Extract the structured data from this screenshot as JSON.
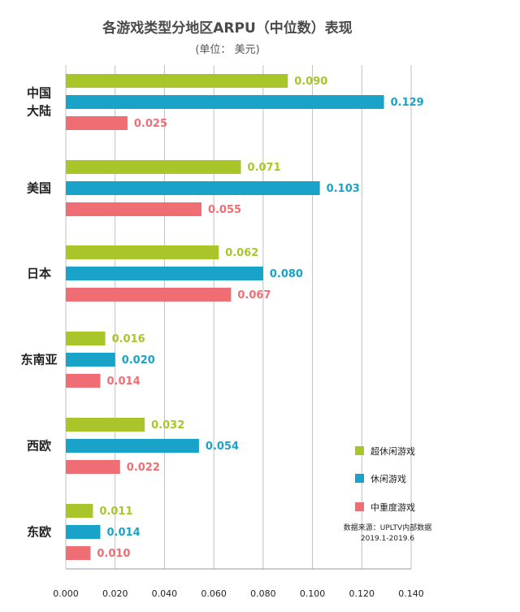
{
  "title": "各游戏类型分地区ARPU（中位数）表现",
  "subtitle": "(单位：  美元)",
  "source_line1": "数据来源：UPLTV内部数据",
  "source_line2": "2019.1-2019.6",
  "chart_data": {
    "type": "bar",
    "orientation": "horizontal",
    "categories": [
      [
        "中国",
        "大陆"
      ],
      [
        "美国"
      ],
      [
        "日本"
      ],
      [
        "东南亚"
      ],
      [
        "西欧"
      ],
      [
        "东欧"
      ]
    ],
    "series": [
      {
        "name": "超休闲游戏",
        "color": "#a8c62a",
        "values": [
          0.09,
          0.071,
          0.062,
          0.016,
          0.032,
          0.011
        ]
      },
      {
        "name": "休闲游戏",
        "color": "#1aa3c9",
        "values": [
          0.129,
          0.103,
          0.08,
          0.02,
          0.054,
          0.014
        ]
      },
      {
        "name": "中重度游戏",
        "color": "#ee6e73",
        "values": [
          0.025,
          0.055,
          0.067,
          0.014,
          0.022,
          0.01
        ]
      }
    ],
    "value_labels": [
      [
        "0.090",
        "0.129",
        "0.025"
      ],
      [
        "0.071",
        "0.103",
        "0.055"
      ],
      [
        "0.062",
        "0.080",
        "0.067"
      ],
      [
        "0.016",
        "0.020",
        "0.014"
      ],
      [
        "0.032",
        "0.054",
        "0.022"
      ],
      [
        "0.011",
        "0.014",
        "0.010"
      ]
    ],
    "xlim": [
      0,
      0.14
    ],
    "xticks": [
      "0.000",
      "0.020",
      "0.040",
      "0.060",
      "0.080",
      "0.100",
      "0.120",
      "0.140"
    ],
    "grid": true,
    "legend_position": "lower-right"
  }
}
